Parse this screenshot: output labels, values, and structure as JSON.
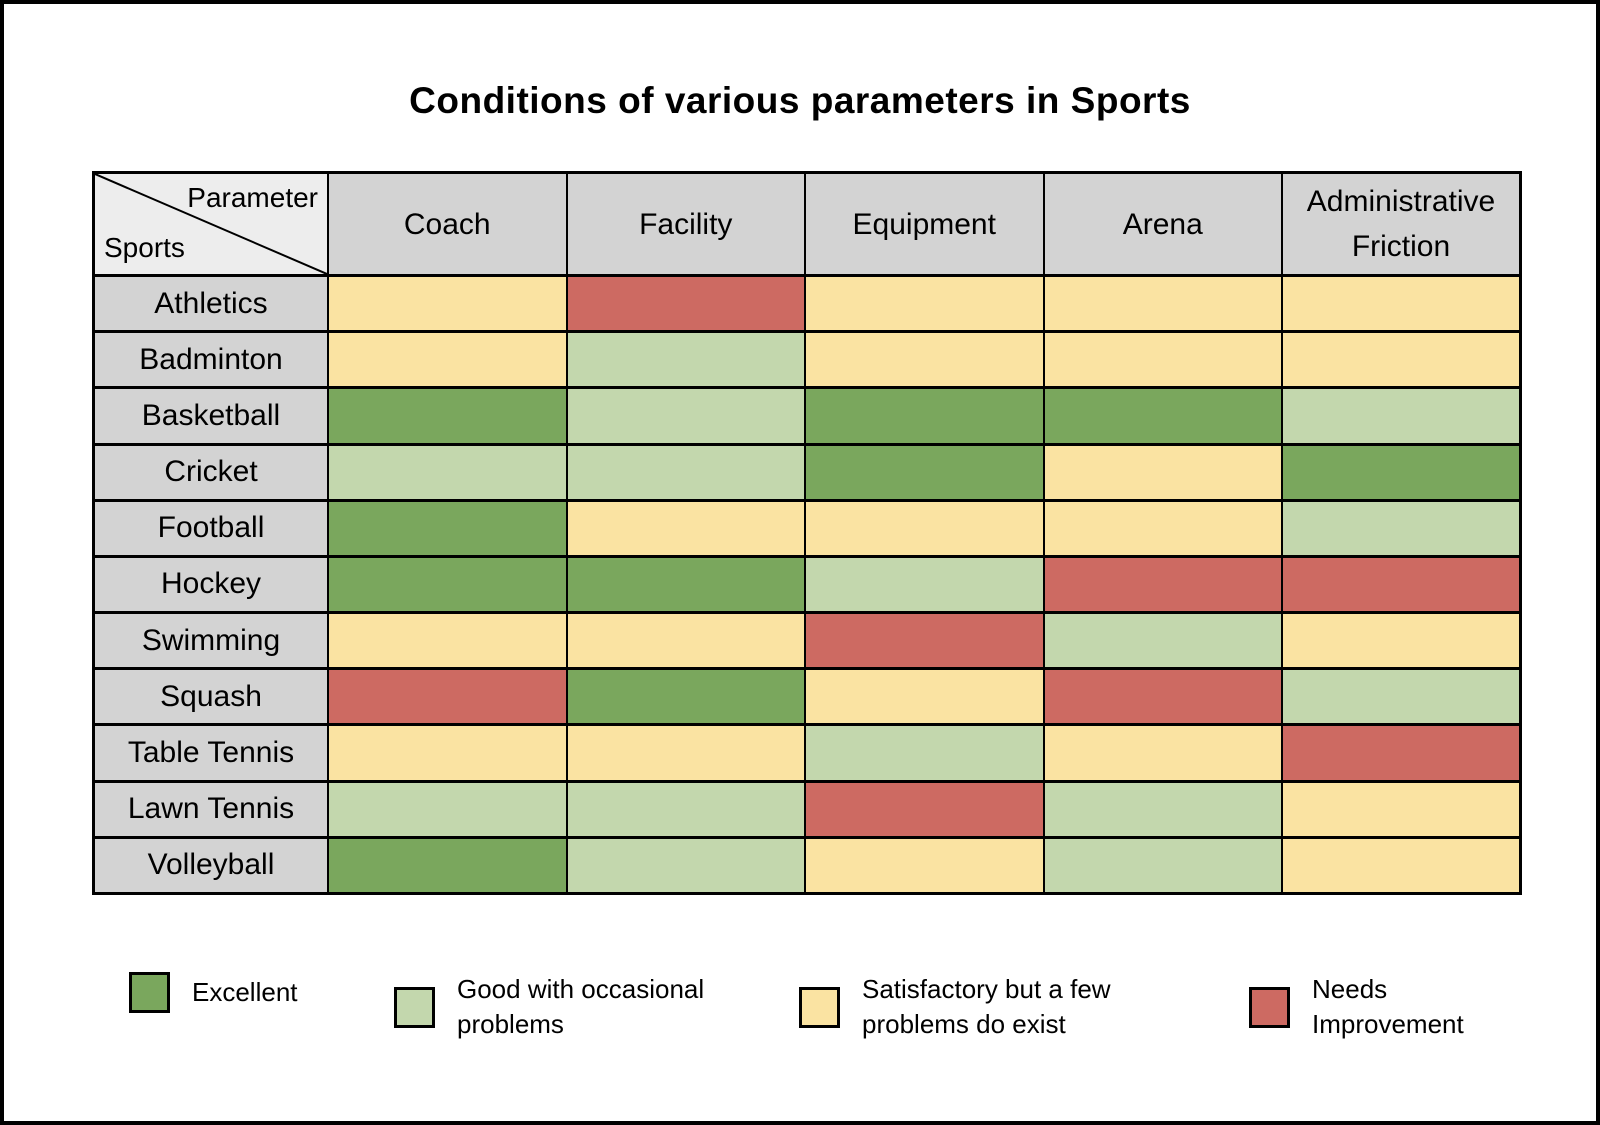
{
  "title": "Conditions of various parameters in Sports",
  "corner": {
    "top_right": "Parameter",
    "bottom_left": "Sports"
  },
  "chart_data": {
    "type": "heatmap",
    "title": "Conditions of various parameters in Sports",
    "columns": [
      "Coach",
      "Facility",
      "Equipment",
      "Arena",
      "Administrative Friction"
    ],
    "rows": [
      {
        "sport": "Athletics",
        "ratings": [
          "satisfactory",
          "needs_improvement",
          "satisfactory",
          "satisfactory",
          "satisfactory"
        ]
      },
      {
        "sport": "Badminton",
        "ratings": [
          "satisfactory",
          "good",
          "satisfactory",
          "satisfactory",
          "satisfactory"
        ]
      },
      {
        "sport": "Basketball",
        "ratings": [
          "excellent",
          "good",
          "excellent",
          "excellent",
          "good"
        ]
      },
      {
        "sport": "Cricket",
        "ratings": [
          "good",
          "good",
          "excellent",
          "satisfactory",
          "excellent"
        ]
      },
      {
        "sport": "Football",
        "ratings": [
          "excellent",
          "satisfactory",
          "satisfactory",
          "satisfactory",
          "good"
        ]
      },
      {
        "sport": "Hockey",
        "ratings": [
          "excellent",
          "excellent",
          "good",
          "needs_improvement",
          "needs_improvement"
        ]
      },
      {
        "sport": "Swimming",
        "ratings": [
          "satisfactory",
          "satisfactory",
          "needs_improvement",
          "good",
          "satisfactory"
        ]
      },
      {
        "sport": "Squash",
        "ratings": [
          "needs_improvement",
          "excellent",
          "satisfactory",
          "needs_improvement",
          "good"
        ]
      },
      {
        "sport": "Table Tennis",
        "ratings": [
          "satisfactory",
          "satisfactory",
          "good",
          "satisfactory",
          "needs_improvement"
        ]
      },
      {
        "sport": "Lawn Tennis",
        "ratings": [
          "good",
          "good",
          "needs_improvement",
          "good",
          "satisfactory"
        ]
      },
      {
        "sport": "Volleyball",
        "ratings": [
          "excellent",
          "good",
          "satisfactory",
          "good",
          "satisfactory"
        ]
      }
    ],
    "legend": [
      {
        "key": "excellent",
        "label": "Excellent",
        "color": "#7aa75d"
      },
      {
        "key": "good",
        "label": "Good with occasional problems",
        "color": "#c3d7ad"
      },
      {
        "key": "satisfactory",
        "label": "Satisfactory but a few problems do exist",
        "color": "#fae3a2"
      },
      {
        "key": "needs_improvement",
        "label": "Needs Improvement",
        "color": "#cd6a62"
      }
    ],
    "legend_position": "bottom",
    "grid": true
  },
  "colors": {
    "header_bg": "#d3d3d3",
    "corner_bg": "#ededed",
    "border": "#000000",
    "page_bg": "#ffffff"
  }
}
